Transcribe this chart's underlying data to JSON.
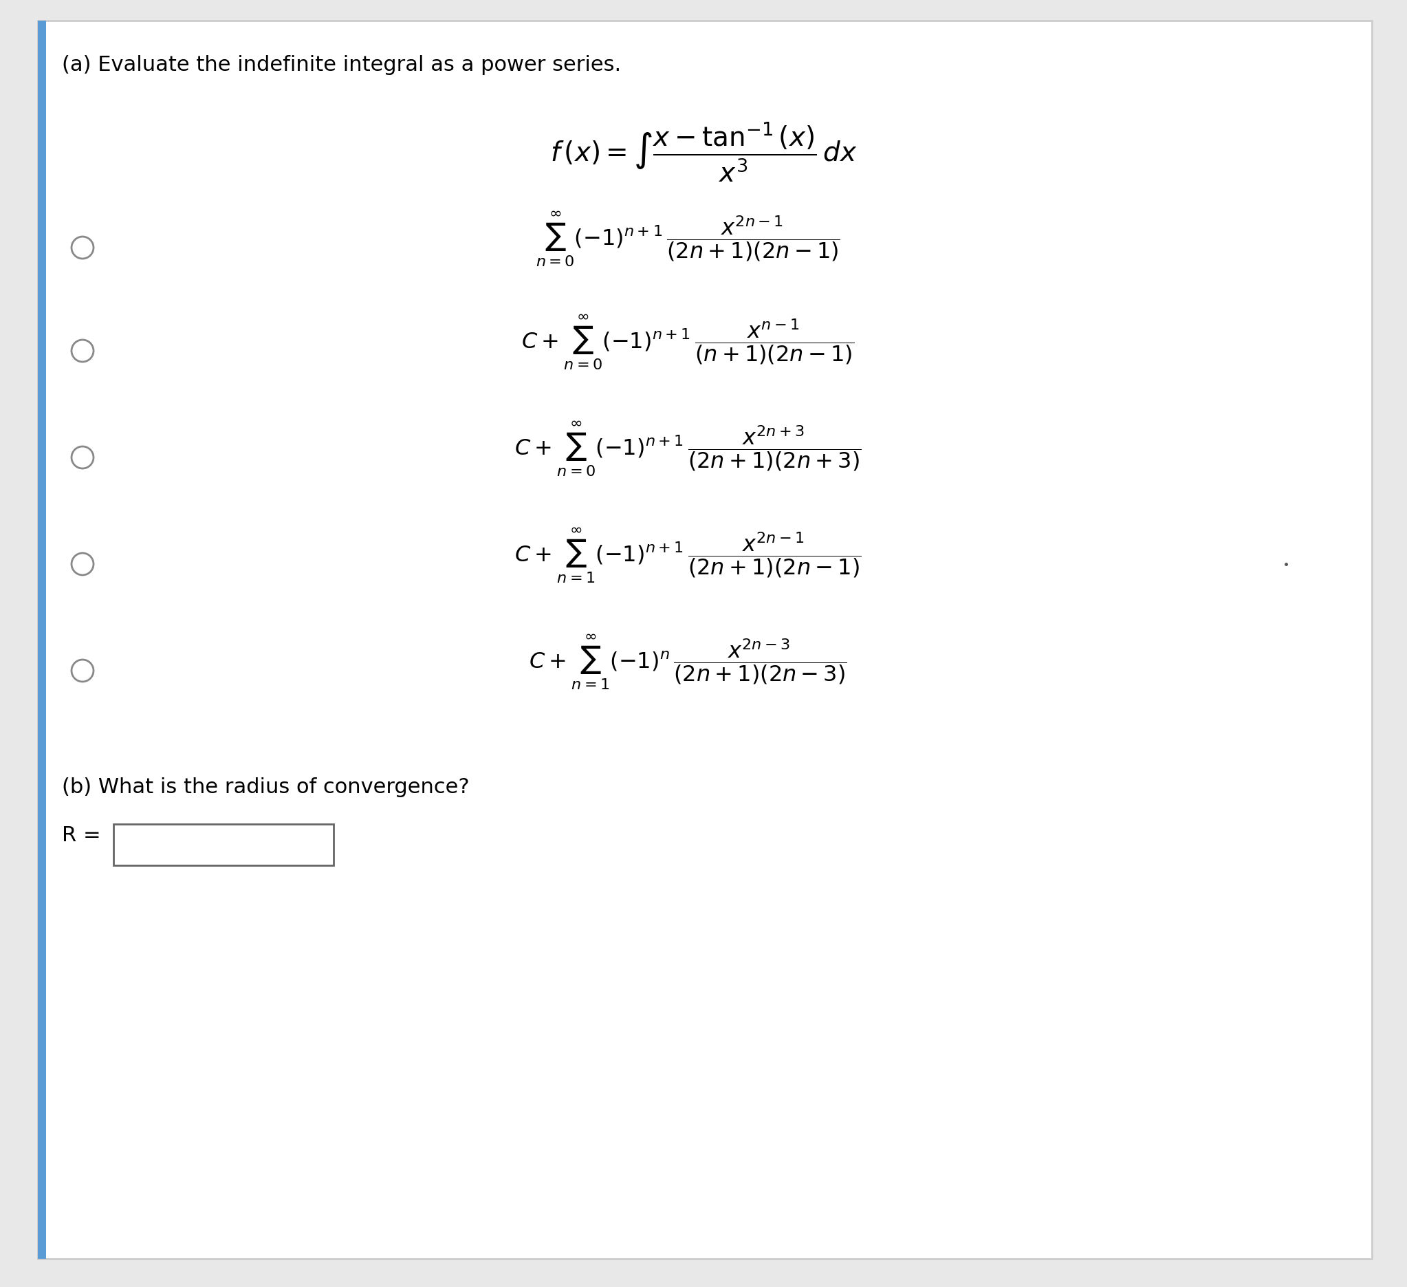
{
  "title_text": "(a) Evaluate the indefinite integral as a power series.",
  "bg_color": "#ffffff",
  "border_color": "#5b9bd5",
  "outer_bg": "#e8e8e8",
  "part_b_text": "(b) What is the radius of convergence?",
  "r_label": "R =",
  "text_color": "#000000",
  "font_size_title": 22,
  "font_size_partb": 22
}
